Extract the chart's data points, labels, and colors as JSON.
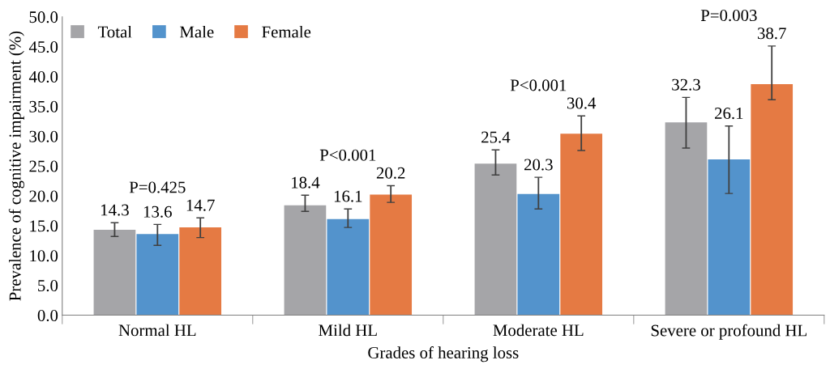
{
  "chart_data": {
    "type": "bar",
    "xlabel": "Grades of hearing loss",
    "ylabel": "Prevalence of cognitive impairment (%)",
    "categories": [
      "Normal HL",
      "Mild HL",
      "Moderate HL",
      "Severe or profound HL"
    ],
    "series": [
      {
        "name": "Total",
        "color": "#a5a5a8",
        "values": [
          14.3,
          18.4,
          25.4,
          32.3
        ],
        "errors": [
          [
            13.2,
            15.5
          ],
          [
            17.4,
            20.1
          ],
          [
            23.5,
            27.7
          ],
          [
            28.0,
            36.5
          ]
        ]
      },
      {
        "name": "Male",
        "color": "#5393cc",
        "values": [
          13.6,
          16.1,
          20.3,
          26.1
        ],
        "errors": [
          [
            11.7,
            15.2
          ],
          [
            14.7,
            17.8
          ],
          [
            17.8,
            23.1
          ],
          [
            20.4,
            31.7
          ]
        ]
      },
      {
        "name": "Female",
        "color": "#e57a43",
        "values": [
          14.7,
          20.2,
          30.4,
          38.7
        ],
        "errors": [
          [
            13.0,
            16.3
          ],
          [
            18.9,
            21.7
          ],
          [
            27.6,
            33.4
          ],
          [
            36.1,
            45.1
          ]
        ]
      }
    ],
    "data_labels": true,
    "ylim": [
      0,
      50
    ],
    "yticks": [
      {
        "value": 0,
        "label": "0.0"
      },
      {
        "value": 5,
        "label": "5.0"
      },
      {
        "value": 10,
        "label": "10.0"
      },
      {
        "value": 15,
        "label": "15.0"
      },
      {
        "value": 20,
        "label": "20.0"
      },
      {
        "value": 25,
        "label": "25.0"
      },
      {
        "value": 30,
        "label": "30.0"
      },
      {
        "value": 35,
        "label": "35.0"
      },
      {
        "value": 40,
        "label": "40.0"
      },
      {
        "value": 45,
        "label": "45.0"
      },
      {
        "value": 50,
        "label": "50.0"
      }
    ],
    "annotations": [
      "P=0.425",
      "P<0.001",
      "P<0.001",
      "P=0.003"
    ],
    "grid": false,
    "legend": "top left"
  }
}
